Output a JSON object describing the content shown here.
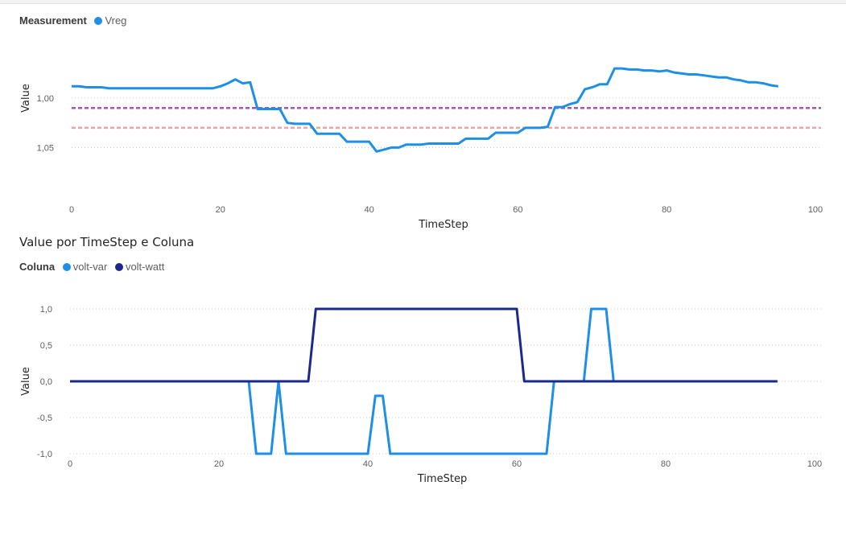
{
  "chart_data": [
    {
      "type": "line",
      "title": "",
      "legend": {
        "title": "Measurement",
        "placement": "top-left"
      },
      "xlabel": "TimeStep",
      "ylabel": "Value",
      "xlim": [
        0,
        100
      ],
      "ylim": [
        0.93,
        1.07
      ],
      "xticks": [
        0,
        20,
        40,
        60,
        80,
        100
      ],
      "yticks": [
        {
          "value": 1.0,
          "label": "1,00"
        },
        {
          "value": 1.05,
          "label": "1,05"
        }
      ],
      "grid": true,
      "reference_lines": [
        {
          "value": 1.03,
          "color": "#f0a3a3"
        },
        {
          "value": 1.01,
          "color": "#a056b4"
        }
      ],
      "series": [
        {
          "name": "Vreg",
          "color": "#1e8fe6",
          "x": [
            0,
            1,
            2,
            3,
            4,
            5,
            6,
            7,
            8,
            9,
            10,
            11,
            12,
            13,
            14,
            15,
            16,
            17,
            18,
            19,
            20,
            21,
            22,
            23,
            24,
            25,
            26,
            27,
            28,
            29,
            30,
            31,
            32,
            33,
            34,
            35,
            36,
            37,
            38,
            39,
            40,
            41,
            42,
            43,
            44,
            45,
            46,
            47,
            48,
            49,
            50,
            51,
            52,
            53,
            54,
            55,
            56,
            57,
            58,
            59,
            60,
            61,
            62,
            63,
            64,
            65,
            66,
            67,
            68,
            69,
            70,
            71,
            72,
            73,
            74,
            75,
            76,
            77,
            78,
            79,
            80,
            81,
            82,
            83,
            84,
            85,
            86,
            87,
            88,
            89,
            90,
            91,
            92,
            93,
            94,
            95
          ],
          "y": [
            0.988,
            0.988,
            0.989,
            0.989,
            0.989,
            0.99,
            0.99,
            0.99,
            0.99,
            0.99,
            0.99,
            0.99,
            0.99,
            0.99,
            0.99,
            0.99,
            0.99,
            0.99,
            0.99,
            0.99,
            0.988,
            0.985,
            0.981,
            0.985,
            0.984,
            1.011,
            1.011,
            1.011,
            1.011,
            1.025,
            1.026,
            1.026,
            1.026,
            1.036,
            1.036,
            1.036,
            1.036,
            1.044,
            1.044,
            1.044,
            1.044,
            1.054,
            1.052,
            1.05,
            1.05,
            1.047,
            1.047,
            1.047,
            1.046,
            1.046,
            1.046,
            1.046,
            1.046,
            1.041,
            1.041,
            1.041,
            1.041,
            1.035,
            1.035,
            1.035,
            1.035,
            1.03,
            1.03,
            1.03,
            1.029,
            1.009,
            1.009,
            1.006,
            1.004,
            0.991,
            0.989,
            0.986,
            0.986,
            0.97,
            0.97,
            0.971,
            0.971,
            0.972,
            0.972,
            0.973,
            0.972,
            0.974,
            0.975,
            0.976,
            0.976,
            0.977,
            0.978,
            0.979,
            0.979,
            0.981,
            0.982,
            0.984,
            0.984,
            0.985,
            0.987,
            0.988
          ]
        }
      ]
    },
    {
      "type": "line",
      "title": "Value por TimeStep e Coluna",
      "legend": {
        "title": "Coluna",
        "placement": "top-left"
      },
      "xlabel": "TimeStep",
      "ylabel": "Value",
      "xlim": [
        0,
        100
      ],
      "ylim": [
        -1.1,
        1.1
      ],
      "xticks": [
        0,
        20,
        40,
        60,
        80,
        100
      ],
      "yticks": [
        {
          "value": -1.0,
          "label": "-1,0"
        },
        {
          "value": -0.5,
          "label": "-0,5"
        },
        {
          "value": 0.0,
          "label": "0,0"
        },
        {
          "value": 0.5,
          "label": "0,5"
        },
        {
          "value": 1.0,
          "label": "1,0"
        }
      ],
      "grid": true,
      "series": [
        {
          "name": "volt-var",
          "color": "#1e8fe6",
          "x": [
            0,
            24,
            25,
            27,
            28,
            29,
            40,
            41,
            42,
            43,
            64,
            65,
            69,
            70,
            72,
            73,
            95
          ],
          "y": [
            0,
            0,
            -1,
            -1,
            0,
            -1,
            -1,
            -0.2,
            -0.2,
            -1,
            -1,
            0,
            0,
            1,
            1,
            0,
            0
          ]
        },
        {
          "name": "volt-watt",
          "color": "#1a2a8c",
          "x": [
            0,
            32,
            33,
            60,
            61,
            95
          ],
          "y": [
            0,
            0,
            1,
            1,
            0,
            0
          ]
        }
      ]
    }
  ]
}
